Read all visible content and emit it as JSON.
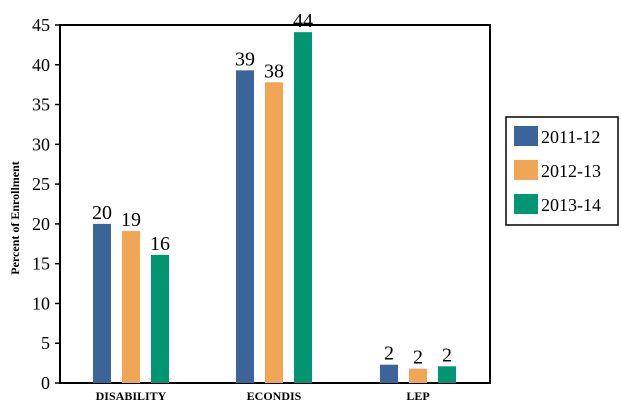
{
  "chart_data": {
    "type": "bar",
    "title": "",
    "xlabel": "",
    "ylabel": "Percent of Enrollment",
    "ylim": [
      0,
      45
    ],
    "yticks": [
      0,
      5,
      10,
      15,
      20,
      25,
      30,
      35,
      40,
      45
    ],
    "categories": [
      "DISABILITY",
      "ECONDIS",
      "LEP"
    ],
    "series": [
      {
        "name": "2011-12",
        "color": "#3b6499",
        "values": [
          20,
          39,
          2
        ]
      },
      {
        "name": "2012-13",
        "color": "#f0a654",
        "values": [
          19,
          38,
          2
        ]
      },
      {
        "name": "2013-14",
        "color": "#009573",
        "values": [
          16,
          44,
          2
        ]
      }
    ],
    "bar_values": [
      [
        20,
        39.3,
        2.3
      ],
      [
        19.1,
        37.8,
        1.8
      ],
      [
        16.1,
        44.1,
        2.1
      ]
    ],
    "grid": false,
    "legend_position": "right"
  }
}
